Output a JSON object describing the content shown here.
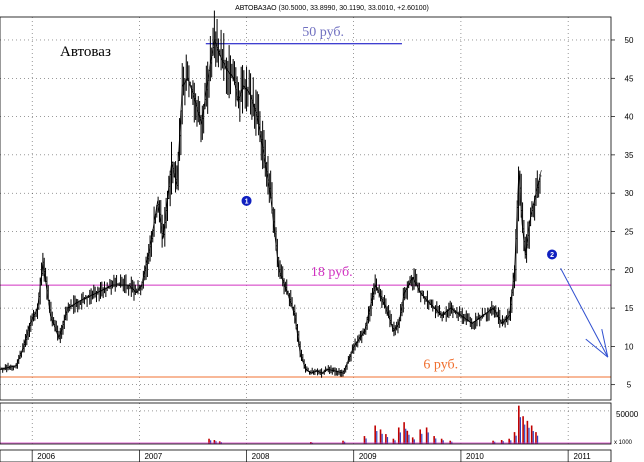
{
  "chart_data": {
    "type": "line",
    "style": "ohlc-bars",
    "header": "АВТОВАЗАО (30.5000, 33.8990, 30.1190, 33.0010, +2.60100)",
    "title": "Автоваз",
    "x_ticks": [
      "2006",
      "2007",
      "2008",
      "2009",
      "2010",
      "2011"
    ],
    "y_ticks": [
      5,
      10,
      15,
      20,
      25,
      30,
      35,
      40,
      45,
      50
    ],
    "ylim": [
      3,
      53
    ],
    "xlim": [
      2005.7,
      2011.4
    ],
    "volume_tick": "50000",
    "volume_scale": "x 1000",
    "grid": true,
    "series": [
      {
        "x": [
          2005.7,
          2005.85,
          2005.92,
          2005.98,
          2006.05,
          2006.1,
          2006.17,
          2006.25,
          2006.33,
          2006.45,
          2006.6,
          2006.75,
          2006.9,
          2006.97,
          2007.02,
          2007.1,
          2007.17,
          2007.22,
          2007.3,
          2007.35,
          2007.4,
          2007.45,
          2007.5,
          2007.58,
          2007.65,
          2007.7,
          2007.75,
          2007.82,
          2007.88,
          2007.92,
          2007.97,
          2008.03,
          2008.1,
          2008.15,
          2008.22,
          2008.3,
          2008.38,
          2008.45,
          2008.5,
          2008.55,
          2008.6,
          2008.65,
          2008.7,
          2008.75,
          2008.82,
          2008.9,
          2009.0,
          2009.1,
          2009.2,
          2009.3,
          2009.37,
          2009.42,
          2009.47,
          2009.55,
          2009.62,
          2009.68,
          2009.75,
          2009.82,
          2009.9,
          2010.0,
          2010.1,
          2010.2,
          2010.3,
          2010.38,
          2010.45,
          2010.5,
          2010.54,
          2010.57,
          2010.6,
          2010.65,
          2010.7,
          2010.75
        ],
        "values": [
          7,
          7.5,
          10,
          13,
          15,
          21,
          14,
          11,
          15,
          16,
          17,
          18,
          18,
          17,
          18,
          23,
          29,
          24,
          34,
          31,
          44,
          45,
          43,
          39,
          46,
          50,
          48,
          46,
          45,
          42,
          44,
          43,
          40,
          36,
          30,
          20,
          17,
          14,
          9,
          7,
          6.5,
          6.8,
          6.5,
          7,
          6.8,
          6.5,
          10,
          12,
          18,
          15,
          12,
          13,
          17,
          19,
          17,
          16,
          15,
          14,
          15,
          14,
          13,
          14,
          15,
          13,
          14,
          20,
          33,
          26,
          22,
          27,
          30,
          33
        ]
      }
    ],
    "volume": {
      "x": [
        2007.65,
        2007.7,
        2007.75,
        2008.6,
        2008.9,
        2009.1,
        2009.2,
        2009.25,
        2009.3,
        2009.37,
        2009.42,
        2009.47,
        2009.5,
        2009.55,
        2009.62,
        2009.68,
        2009.75,
        2009.82,
        2009.9,
        2010.3,
        2010.38,
        2010.45,
        2010.5,
        2010.54,
        2010.58,
        2010.62,
        2010.66,
        2010.7
      ],
      "values": [
        8000,
        6000,
        4000,
        3000,
        5000,
        12000,
        28000,
        22000,
        15000,
        8000,
        25000,
        33000,
        20000,
        10000,
        22000,
        25000,
        12000,
        8000,
        5000,
        5000,
        6000,
        8000,
        18000,
        58000,
        42000,
        35000,
        28000,
        18000
      ]
    },
    "annotations": [
      {
        "text": "50 руб.",
        "price": 50,
        "color": "#7070c0"
      },
      {
        "text": "18 руб.",
        "price": 18,
        "color": "#d030c0"
      },
      {
        "text": "6 руб.",
        "price": 6,
        "color": "#f07030"
      }
    ],
    "markers": [
      "1",
      "2"
    ]
  }
}
